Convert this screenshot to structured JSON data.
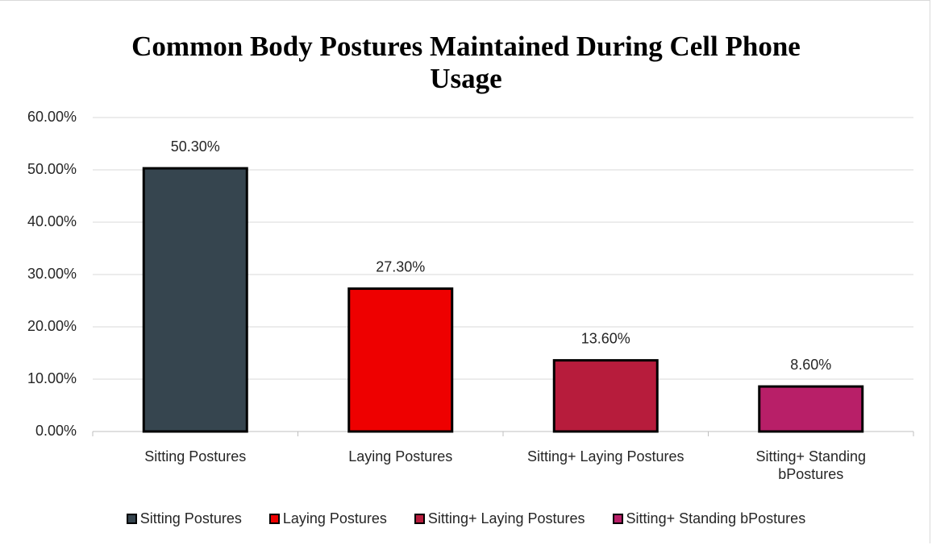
{
  "chart_data": {
    "type": "bar",
    "title": "Common Body Postures Maintained During Cell Phone Usage",
    "categories": [
      "Sitting Postures",
      "Laying Postures",
      "Sitting+ Laying Postures",
      "Sitting+ Standing bPostures"
    ],
    "values": [
      50.3,
      27.3,
      13.6,
      8.6
    ],
    "value_labels": [
      "50.30%",
      "27.30%",
      "13.60%",
      "8.60%"
    ],
    "colors": [
      "#36454f",
      "#ee0000",
      "#b71c3c",
      "#b81f68"
    ],
    "ylim": [
      0,
      60
    ],
    "yticks": [
      {
        "value": 0,
        "label": "0.00%"
      },
      {
        "value": 10,
        "label": "10.00%"
      },
      {
        "value": 20,
        "label": "20.00%"
      },
      {
        "value": 30,
        "label": "30.00%"
      },
      {
        "value": 40,
        "label": "40.00%"
      },
      {
        "value": 50,
        "label": "50.00%"
      },
      {
        "value": 60,
        "label": "60.00%"
      }
    ],
    "grid": true,
    "legend": "bottom"
  }
}
